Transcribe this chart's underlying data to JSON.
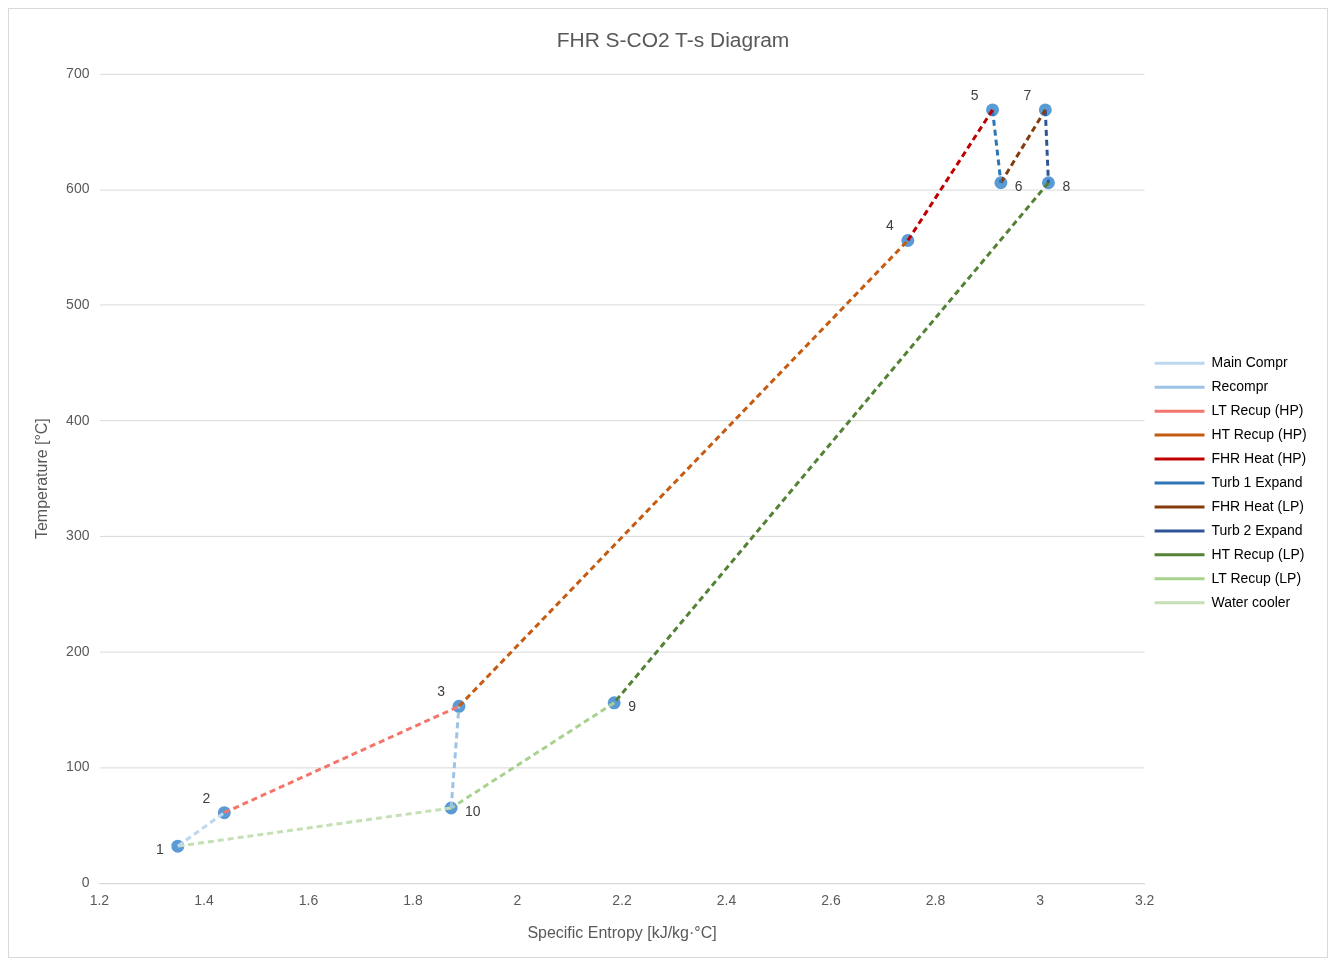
{
  "chart_data": {
    "type": "line",
    "title": "FHR S-CO2 T-s Diagram",
    "xlabel": "Specific Entropy [kJ/kg·°C]",
    "ylabel": "Temperature [°C]",
    "xlim": [
      1.2,
      3.2
    ],
    "xticks": [
      1.2,
      1.4,
      1.6,
      1.8,
      2,
      2.2,
      2.4,
      2.6,
      2.8,
      3,
      3.2
    ],
    "ylim": [
      0,
      700
    ],
    "yticks": [
      0,
      100,
      200,
      300,
      400,
      500,
      600,
      700
    ],
    "grid": "y",
    "legend": "right",
    "line_style": "dashed",
    "marker": "none",
    "series": [
      {
        "name": "Main Compr",
        "color": "#bdd7ee",
        "x": [
          1.35,
          1.439
        ],
        "values": [
          32,
          61
        ]
      },
      {
        "name": "Recompr",
        "color": "#9dc3e6",
        "x": [
          1.873,
          1.888
        ],
        "values": [
          65,
          153
        ]
      },
      {
        "name": "LT Recup (HP)",
        "color": "#f4756b",
        "x": [
          1.439,
          1.888
        ],
        "values": [
          61,
          153
        ]
      },
      {
        "name": "HT Recup (HP)",
        "color": "#c55a11",
        "x": [
          1.888,
          2.747
        ],
        "values": [
          153,
          556
        ]
      },
      {
        "name": "FHR Heat (HP)",
        "color": "#c00000",
        "x": [
          2.747,
          2.909
        ],
        "values": [
          556,
          669
        ]
      },
      {
        "name": "Turb 1 Expand",
        "color": "#2e75b6",
        "x": [
          2.909,
          2.925
        ],
        "values": [
          669,
          606
        ]
      },
      {
        "name": "FHR Heat (LP)",
        "color": "#843c0c",
        "x": [
          2.925,
          3.01
        ],
        "values": [
          606,
          669
        ]
      },
      {
        "name": "Turb 2 Expand",
        "color": "#2f5597",
        "x": [
          3.01,
          3.016
        ],
        "values": [
          669,
          606
        ]
      },
      {
        "name": "HT Recup (LP)",
        "color": "#548235",
        "x": [
          3.016,
          2.185
        ],
        "values": [
          606,
          156
        ]
      },
      {
        "name": "LT Recup (LP)",
        "color": "#a9d18e",
        "x": [
          2.185,
          1.873
        ],
        "values": [
          156,
          65
        ]
      },
      {
        "name": "Water cooler",
        "color": "#c5e0b4",
        "x": [
          1.873,
          1.35
        ],
        "values": [
          65,
          32
        ]
      },
      {
        "type": "scatter",
        "marker": "circle",
        "color": "#5b9bd5",
        "x": [
          1.35,
          1.439,
          1.888,
          2.747,
          2.909,
          2.925,
          3.01,
          3.016,
          2.185,
          1.873
        ],
        "values": [
          32,
          61,
          153,
          556,
          669,
          606,
          669,
          606,
          156,
          65
        ]
      }
    ],
    "annotations": [
      {
        "text": "1",
        "x": 1.35,
        "y": 32
      },
      {
        "text": "2",
        "x": 1.439,
        "y": 61
      },
      {
        "text": "3",
        "x": 1.888,
        "y": 153
      },
      {
        "text": "4",
        "x": 2.747,
        "y": 556
      },
      {
        "text": "5",
        "x": 2.909,
        "y": 669
      },
      {
        "text": "6",
        "x": 2.925,
        "y": 606
      },
      {
        "text": "7",
        "x": 3.01,
        "y": 669
      },
      {
        "text": "8",
        "x": 3.016,
        "y": 606
      },
      {
        "text": "9",
        "x": 2.185,
        "y": 156
      },
      {
        "text": "10",
        "x": 1.873,
        "y": 65
      }
    ]
  }
}
